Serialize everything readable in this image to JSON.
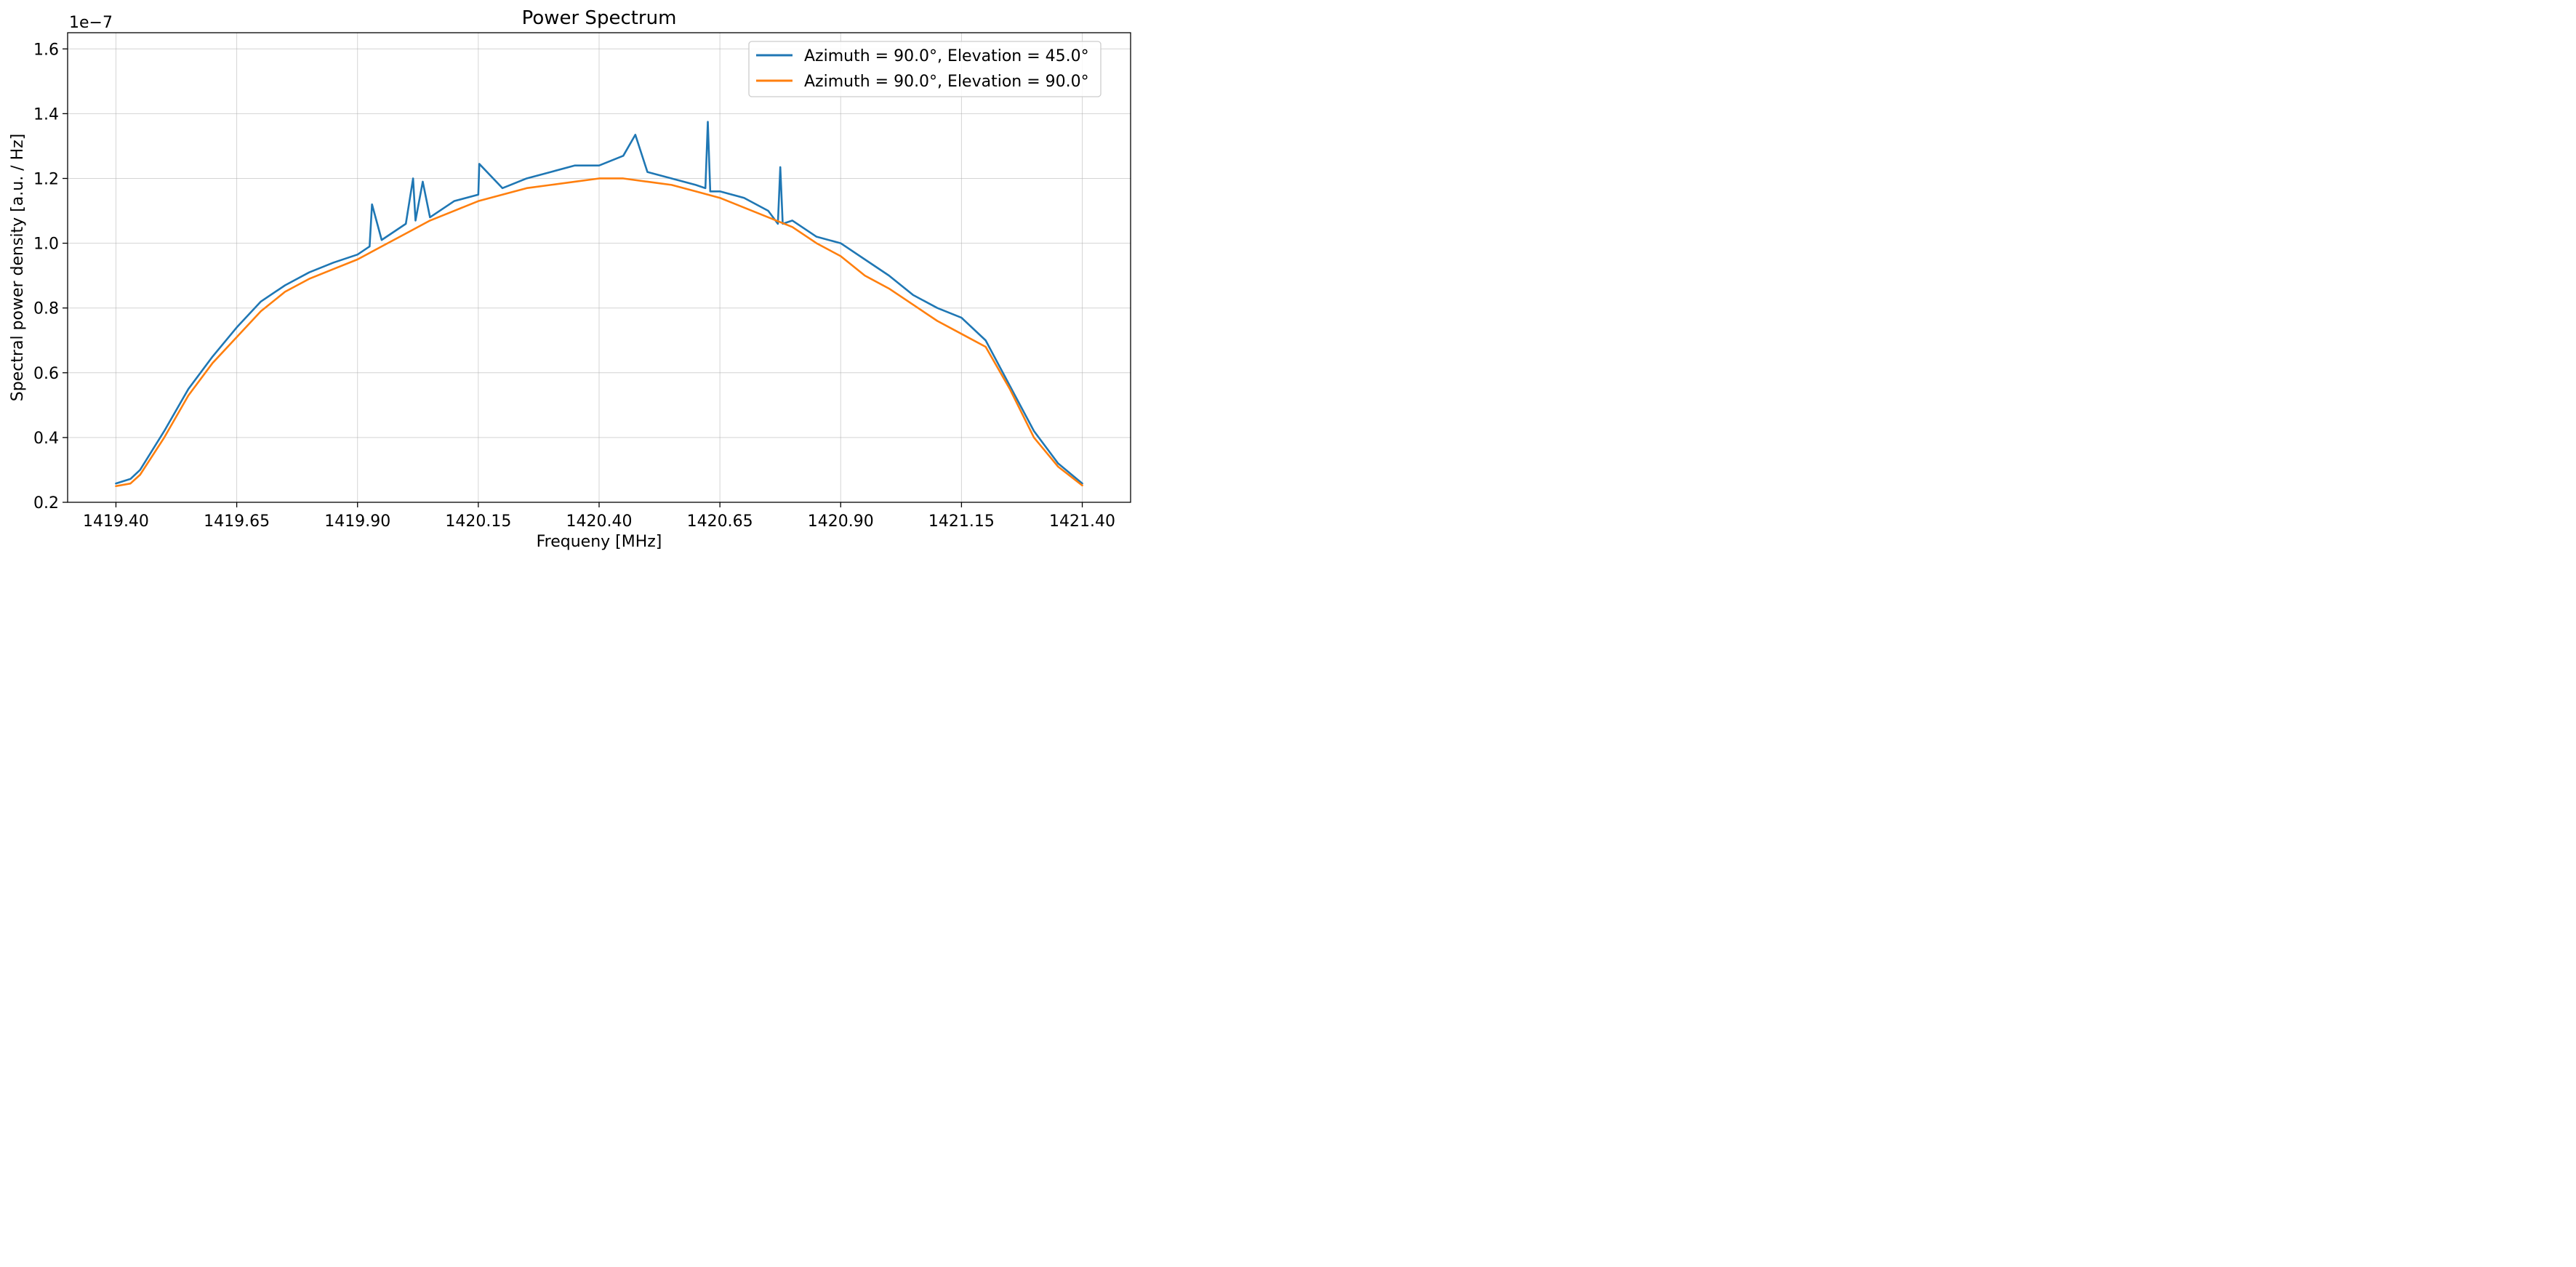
{
  "chart_data": {
    "type": "line",
    "title": "Power Spectrum",
    "xlabel": "Frequeny [MHz]",
    "ylabel": "Spectral power density [a.u. / Hz]",
    "y_offset_label": "1e−7",
    "xlim": [
      1419.3,
      1421.5
    ],
    "ylim": [
      0.2,
      1.65
    ],
    "x_ticks": [
      1419.4,
      1419.65,
      1419.9,
      1420.15,
      1420.4,
      1420.65,
      1420.9,
      1421.15,
      1421.4
    ],
    "x_tick_labels": [
      "1419.40",
      "1419.65",
      "1419.90",
      "1420.15",
      "1420.40",
      "1420.65",
      "1420.90",
      "1421.15",
      "1421.40"
    ],
    "y_ticks": [
      0.2,
      0.4,
      0.6,
      0.8,
      1.0,
      1.2,
      1.4,
      1.6
    ],
    "y_tick_labels": [
      "0.2",
      "0.4",
      "0.6",
      "0.8",
      "1.0",
      "1.2",
      "1.4",
      "1.6"
    ],
    "grid": true,
    "legend_position": "top-right",
    "series": [
      {
        "name": "Azimuth = 90.0°, Elevation = 45.0°",
        "color": "#1f77b4",
        "x": [
          1419.4,
          1419.43,
          1419.45,
          1419.5,
          1419.55,
          1419.6,
          1419.65,
          1419.7,
          1419.75,
          1419.8,
          1419.85,
          1419.9,
          1419.925,
          1419.93,
          1419.95,
          1420.0,
          1420.015,
          1420.02,
          1420.035,
          1420.05,
          1420.1,
          1420.15,
          1420.152,
          1420.2,
          1420.25,
          1420.3,
          1420.35,
          1420.4,
          1420.45,
          1420.475,
          1420.5,
          1420.55,
          1420.6,
          1420.62,
          1420.625,
          1420.63,
          1420.65,
          1420.7,
          1420.75,
          1420.77,
          1420.775,
          1420.78,
          1420.8,
          1420.85,
          1420.9,
          1420.95,
          1421.0,
          1421.05,
          1421.1,
          1421.15,
          1421.2,
          1421.25,
          1421.3,
          1421.35,
          1421.4
        ],
        "values": [
          0.258,
          0.272,
          0.3,
          0.42,
          0.55,
          0.65,
          0.74,
          0.82,
          0.87,
          0.91,
          0.94,
          0.965,
          0.99,
          1.12,
          1.01,
          1.06,
          1.2,
          1.07,
          1.19,
          1.08,
          1.13,
          1.15,
          1.245,
          1.17,
          1.2,
          1.22,
          1.24,
          1.24,
          1.27,
          1.335,
          1.22,
          1.2,
          1.18,
          1.17,
          1.375,
          1.16,
          1.16,
          1.14,
          1.1,
          1.06,
          1.235,
          1.06,
          1.07,
          1.02,
          1.0,
          0.95,
          0.9,
          0.84,
          0.8,
          0.77,
          0.7,
          0.56,
          0.42,
          0.32,
          0.258
        ]
      },
      {
        "name": "Azimuth = 90.0°, Elevation = 90.0°",
        "color": "#ff7f0e",
        "x": [
          1419.4,
          1419.43,
          1419.45,
          1419.5,
          1419.55,
          1419.6,
          1419.65,
          1419.7,
          1419.75,
          1419.8,
          1419.85,
          1419.9,
          1419.95,
          1420.0,
          1420.05,
          1420.1,
          1420.15,
          1420.2,
          1420.25,
          1420.3,
          1420.35,
          1420.4,
          1420.45,
          1420.5,
          1420.55,
          1420.6,
          1420.65,
          1420.7,
          1420.75,
          1420.8,
          1420.85,
          1420.9,
          1420.95,
          1421.0,
          1421.05,
          1421.1,
          1421.15,
          1421.2,
          1421.25,
          1421.3,
          1421.35,
          1421.4
        ],
        "values": [
          0.25,
          0.258,
          0.285,
          0.4,
          0.53,
          0.63,
          0.71,
          0.79,
          0.85,
          0.89,
          0.92,
          0.95,
          0.99,
          1.03,
          1.07,
          1.1,
          1.13,
          1.15,
          1.17,
          1.18,
          1.19,
          1.2,
          1.2,
          1.19,
          1.18,
          1.16,
          1.14,
          1.11,
          1.08,
          1.05,
          1.0,
          0.96,
          0.9,
          0.86,
          0.81,
          0.76,
          0.72,
          0.68,
          0.55,
          0.4,
          0.31,
          0.252
        ]
      }
    ]
  }
}
